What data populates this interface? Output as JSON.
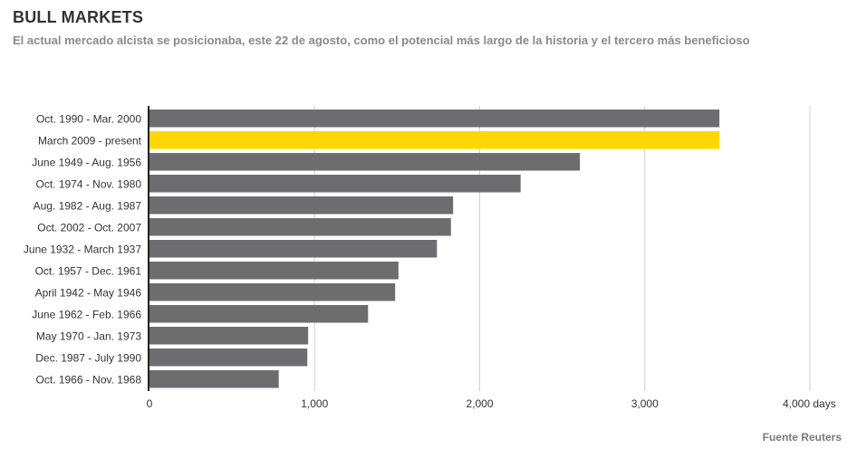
{
  "header": {
    "title": "BULL MARKETS",
    "subtitle": "El actual mercado alcista se posicionaba, este 22 de agosto, como el potencial más largo de la historia y el tercero más beneficioso"
  },
  "footer": {
    "source": "Fuente Reuters"
  },
  "colors": {
    "bar": "#6d6d70",
    "highlight": "#ffd600",
    "grid": "#cfcfcf",
    "axis": "#222222",
    "label": "#333333"
  },
  "chart_data": {
    "type": "bar",
    "orientation": "horizontal",
    "title": "BULL MARKETS",
    "xlabel": "days",
    "ylabel": "",
    "xlim": [
      0,
      4000
    ],
    "x_ticks": [
      0,
      1000,
      2000,
      3000,
      4000
    ],
    "x_tick_labels": [
      "0",
      "1,000",
      "2,000",
      "3,000",
      "4,000 days"
    ],
    "grid": true,
    "highlight_index": 1,
    "categories": [
      "Oct. 1990 - Mar. 2000",
      "March 2009 - present",
      "June 1949 - Aug. 1956",
      "Oct. 1974 - Nov. 1980",
      "Aug. 1982 - Aug. 1987",
      "Oct. 2002 - Oct. 2007",
      "June 1932 - March 1937",
      "Oct. 1957 - Dec. 1961",
      "April 1942 - May 1946",
      "June 1962 - Feb. 1966",
      "May 1970 - Jan. 1973",
      "Dec. 1987 - July 1990",
      "Oct. 1966 - Nov. 1968"
    ],
    "values": [
      3452,
      3452,
      2607,
      2248,
      1839,
      1826,
      1741,
      1508,
      1488,
      1324,
      961,
      956,
      783
    ]
  }
}
